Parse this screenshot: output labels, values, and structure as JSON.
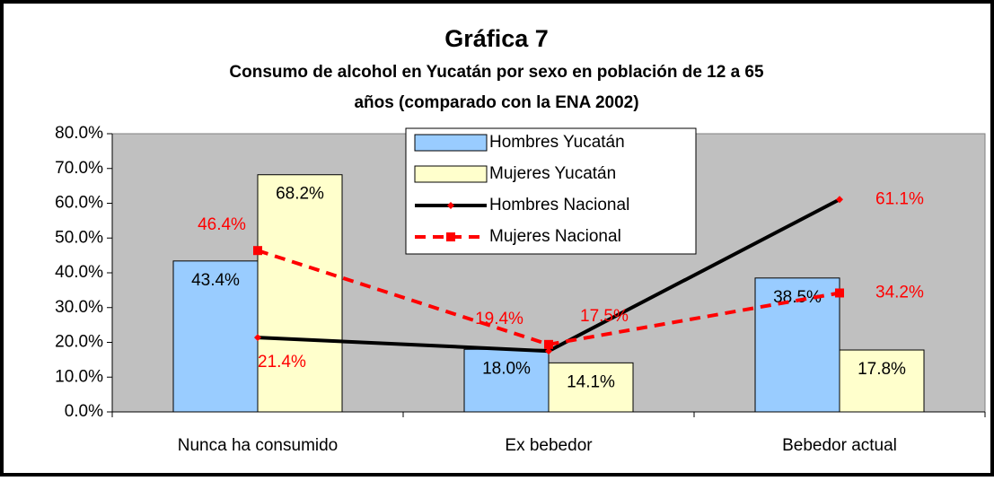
{
  "chart_data": {
    "type": "bar",
    "title": "Gráfica 7",
    "subtitle": [
      "Consumo de alcohol en Yucatán por sexo en población de 12 a 65",
      "años (comparado con la ENA 2002)"
    ],
    "categories": [
      "Nunca ha consumido",
      "Ex bebedor",
      "Bebedor actual"
    ],
    "series": [
      {
        "name": "Hombres Yucatán",
        "type": "bar",
        "color": "#99ccff",
        "values": [
          43.4,
          18.0,
          38.5
        ],
        "value_labels": [
          "43.4%",
          "18.0%",
          "38.5%"
        ],
        "label_color": "#000000"
      },
      {
        "name": "Mujeres Yucatán",
        "type": "bar",
        "color": "#ffffcc",
        "values": [
          68.2,
          14.1,
          17.8
        ],
        "value_labels": [
          "68.2%",
          "14.1%",
          "17.8%"
        ],
        "label_color": "#000000"
      },
      {
        "name": "Hombres Nacional",
        "type": "line",
        "color": "#000000",
        "marker_color": "#ff0000",
        "dash": false,
        "values": [
          21.4,
          17.5,
          61.1
        ],
        "value_labels": [
          "21.4%",
          "17.5%",
          "61.1%"
        ],
        "label_color": "#ff0000"
      },
      {
        "name": "Mujeres Nacional",
        "type": "line",
        "color": "#ff0000",
        "marker_color": "#ff0000",
        "dash": true,
        "values": [
          46.4,
          19.4,
          34.2
        ],
        "value_labels": [
          "46.4%",
          "19.4%",
          "34.2%"
        ],
        "label_color": "#ff0000"
      }
    ],
    "ylim": [
      0,
      80
    ],
    "yticks": [
      {
        "value": 0,
        "label": "0.0%"
      },
      {
        "value": 10,
        "label": "10.0%"
      },
      {
        "value": 20,
        "label": "20.0%"
      },
      {
        "value": 30,
        "label": "30.0%"
      },
      {
        "value": 40,
        "label": "40.0%"
      },
      {
        "value": 50,
        "label": "50.0%"
      },
      {
        "value": 60,
        "label": "60.0%"
      },
      {
        "value": 70,
        "label": "70.0%"
      },
      {
        "value": 80,
        "label": "80.0%"
      }
    ],
    "plot_background": "#c0c0c0",
    "legend": "top"
  }
}
